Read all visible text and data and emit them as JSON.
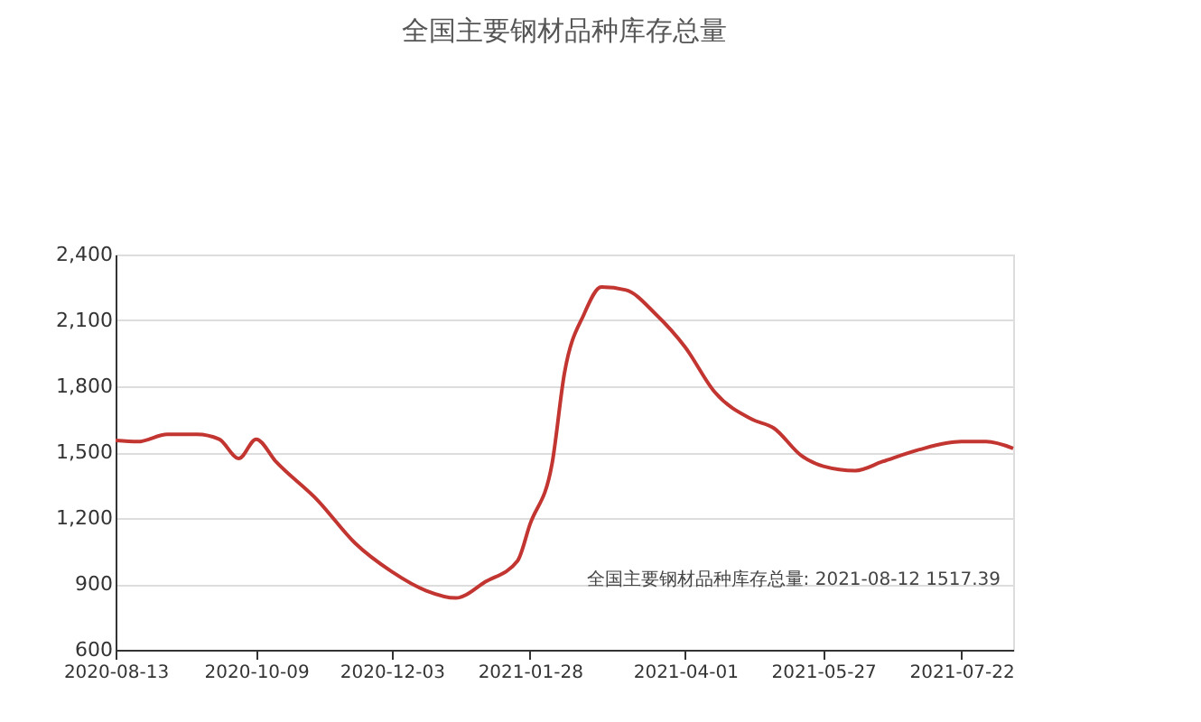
{
  "chart_data": {
    "type": "line",
    "title": "全国主要钢材品种库存总量",
    "x": [
      "2020-08-13",
      "2020-08-22",
      "2020-09-03",
      "2020-09-15",
      "2020-09-24",
      "2020-10-02",
      "2020-10-09",
      "2020-10-17",
      "2020-11-03",
      "2020-11-18",
      "2020-12-03",
      "2020-12-17",
      "2020-12-29",
      "2021-01-10",
      "2021-01-23",
      "2021-01-28",
      "2021-02-06",
      "2021-02-11",
      "2021-02-19",
      "2021-02-26",
      "2021-03-08",
      "2021-03-20",
      "2021-04-01",
      "2021-04-13",
      "2021-04-28",
      "2021-05-07",
      "2021-05-18",
      "2021-05-27",
      "2021-06-09",
      "2021-06-20",
      "2021-07-05",
      "2021-07-22",
      "2021-08-01",
      "2021-08-12"
    ],
    "series": [
      {
        "color": "#c23531",
        "values": [
          1553,
          1548,
          1581,
          1581,
          1559,
          1471,
          1559,
          1457,
          1280,
          1087,
          956,
          869,
          836,
          910,
          1005,
          1170,
          1447,
          1858,
          2129,
          2252,
          2238,
          2129,
          1978,
          1773,
          1650,
          1609,
          1485,
          1436,
          1416,
          1457,
          1512,
          1548,
          1548,
          1517.39
        ]
      }
    ],
    "xlim": [
      "2020-08-13",
      "2021-08-12"
    ],
    "xticks": [
      "2020-08-13",
      "2020-10-09",
      "2020-12-03",
      "2021-01-28",
      "2021-04-01",
      "2021-05-27",
      "2021-07-22"
    ],
    "ylim": [
      600,
      2400
    ],
    "yticks": [
      600,
      900,
      {
        "value": 1200,
        "label": "1,200"
      },
      {
        "value": 1500,
        "label": "1,500"
      },
      {
        "value": 1800,
        "label": "1,800"
      },
      {
        "value": 2100,
        "label": "2,100"
      },
      {
        "value": 2400,
        "label": "2,400"
      }
    ],
    "grid": "y",
    "marker": "none",
    "line_style": "solid",
    "annotations": [
      "全国主要钢材品种库存总量: 2021-08-12 1517.39"
    ]
  }
}
